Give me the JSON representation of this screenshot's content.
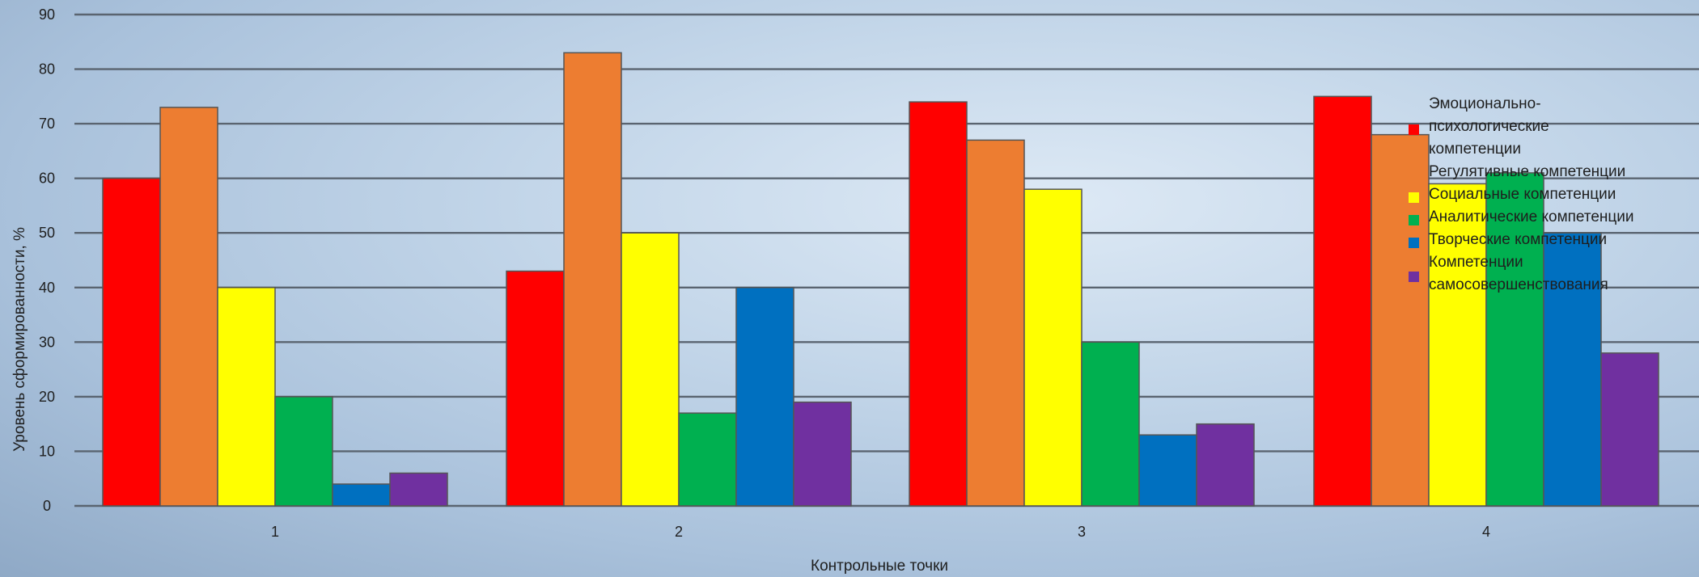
{
  "chart_data": {
    "type": "bar",
    "categories": [
      "1",
      "2",
      "3",
      "4"
    ],
    "xlabel": "Контрольные точки",
    "ylabel": "Уровень сформированности, %",
    "ylim": [
      0,
      90
    ],
    "yticks": [
      0,
      10,
      20,
      30,
      40,
      50,
      60,
      70,
      80,
      90
    ],
    "grid": true,
    "legend_position": "right",
    "series": [
      {
        "name": "Эмоционально-психологические компетенции",
        "color": "#ff0000",
        "values": [
          60,
          43,
          74,
          75
        ]
      },
      {
        "name": "Регулятивные компетенции",
        "color": "#ed7d31",
        "values": [
          73,
          83,
          67,
          68
        ]
      },
      {
        "name": "Социальные компетенции",
        "color": "#ffff00",
        "values": [
          40,
          50,
          58,
          59
        ]
      },
      {
        "name": "Аналитические компетенции",
        "color": "#00b050",
        "values": [
          20,
          17,
          30,
          61
        ]
      },
      {
        "name": "Творческие компетенции",
        "color": "#0070c0",
        "values": [
          4,
          40,
          13,
          50
        ]
      },
      {
        "name": "Компетенции самосовершенствования",
        "color": "#7030a0",
        "values": [
          6,
          19,
          15,
          28
        ]
      }
    ]
  }
}
